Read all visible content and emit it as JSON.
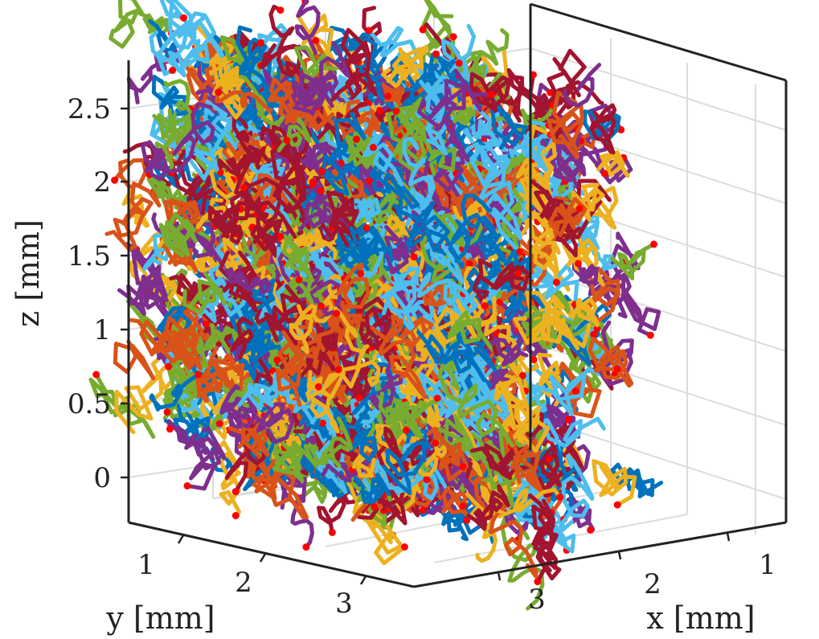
{
  "chart_data": {
    "type": "scatter",
    "subtype": "3d-trajectories",
    "title": "",
    "xlabel": "x [mm]",
    "ylabel": "y [mm]",
    "zlabel": "z [mm]",
    "xlim": [
      0,
      4
    ],
    "ylim": [
      0,
      4
    ],
    "zlim": [
      -0.25,
      2.8
    ],
    "xticks": [
      1,
      2,
      3
    ],
    "yticks": [
      1,
      2,
      3
    ],
    "zticks": [
      0,
      0.5,
      1,
      1.5,
      2,
      2.5
    ],
    "xtick_labels": [
      "1",
      "2",
      "3"
    ],
    "ytick_labels": [
      "1",
      "2",
      "3"
    ],
    "ztick_labels": [
      "0",
      "0.5",
      "1",
      "1.5",
      "2",
      "2.5"
    ],
    "grid": true,
    "series_colors": [
      "#0072BD",
      "#D95319",
      "#EDB120",
      "#7E2F8E",
      "#77AC30",
      "#4DBEEE",
      "#A2142F"
    ],
    "endpoint_marker_color": "#FF0000",
    "trajectory_count_estimate": 1200,
    "region": {
      "x": [
        0.4,
        3.6
      ],
      "y": [
        0.4,
        3.6
      ],
      "z": [
        -0.2,
        2.7
      ]
    }
  }
}
